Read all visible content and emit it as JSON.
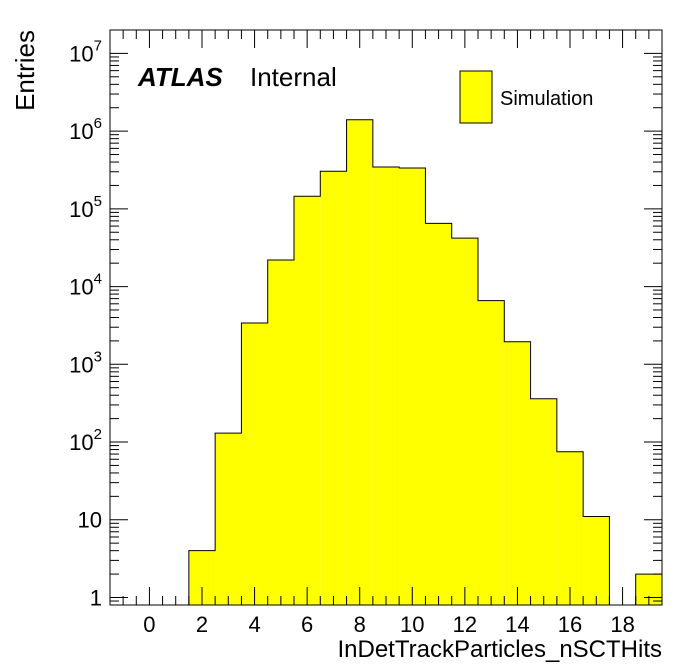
{
  "chart_data": {
    "type": "bar",
    "histogram": true,
    "xlabel": "InDetTrackParticles_nSCTHits",
    "ylabel": "Entries",
    "xlim": [
      -1.5,
      19.5
    ],
    "ylim": [
      0.8,
      20000000
    ],
    "yscale": "log",
    "fill_color": "#ffff00",
    "edge_color": "#000000",
    "x_ticks": [
      "0",
      "2",
      "4",
      "6",
      "8",
      "10",
      "12",
      "14",
      "16",
      "18"
    ],
    "y_ticks": [
      {
        "base": "1",
        "exp": ""
      },
      {
        "base": "10",
        "exp": ""
      },
      {
        "base": "10",
        "exp": "2"
      },
      {
        "base": "10",
        "exp": "3"
      },
      {
        "base": "10",
        "exp": "4"
      },
      {
        "base": "10",
        "exp": "5"
      },
      {
        "base": "10",
        "exp": "6"
      },
      {
        "base": "10",
        "exp": "7"
      }
    ],
    "bins": [
      {
        "x": 0,
        "value": 0
      },
      {
        "x": 1,
        "value": 0
      },
      {
        "x": 2,
        "value": 4
      },
      {
        "x": 3,
        "value": 130
      },
      {
        "x": 4,
        "value": 3400
      },
      {
        "x": 5,
        "value": 22000
      },
      {
        "x": 6,
        "value": 145000
      },
      {
        "x": 7,
        "value": 305000
      },
      {
        "x": 8,
        "value": 1400000
      },
      {
        "x": 9,
        "value": 345000
      },
      {
        "x": 10,
        "value": 335000
      },
      {
        "x": 11,
        "value": 65000
      },
      {
        "x": 12,
        "value": 42000
      },
      {
        "x": 13,
        "value": 6600
      },
      {
        "x": 14,
        "value": 1950
      },
      {
        "x": 15,
        "value": 360
      },
      {
        "x": 16,
        "value": 75
      },
      {
        "x": 17,
        "value": 11
      },
      {
        "x": 18,
        "value": 0
      },
      {
        "x": 19,
        "value": 2
      }
    ],
    "legend": {
      "label": "Simulation",
      "placement": "top-right"
    },
    "atlas_label": {
      "bold": "ATLAS",
      "text": "Internal",
      "placement": "top-left"
    },
    "grid": false
  }
}
